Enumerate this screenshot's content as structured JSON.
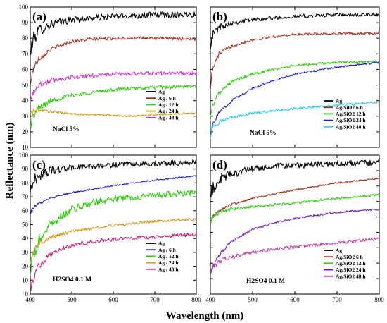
{
  "figure": {
    "ylabel": "Reflectance (nm)",
    "xlabel": "Wavelength (nm)"
  },
  "chart_data": [
    {
      "type": "line",
      "panel_label": "(a)",
      "condition": "NaCl 5%",
      "xlim": [
        400,
        800
      ],
      "ylim": [
        10,
        100
      ],
      "xticks": [
        400,
        500,
        600,
        700,
        800
      ],
      "yticks": [
        10,
        20,
        30,
        40,
        50,
        60,
        70,
        80,
        90,
        100
      ],
      "legend_position": "bottom-right",
      "series": [
        {
          "name": "Ag",
          "color": "#000000",
          "noise": 2.0,
          "x": [
            400,
            405,
            420,
            450,
            500,
            550,
            600,
            700,
            800
          ],
          "y": [
            68,
            78,
            85,
            89,
            92,
            93,
            94,
            95,
            95.5
          ]
        },
        {
          "name": "Ag / 6 h",
          "color": "#a0301e",
          "noise": 1.0,
          "x": [
            400,
            405,
            420,
            450,
            500,
            550,
            600,
            700,
            800
          ],
          "y": [
            48,
            59,
            67,
            73,
            78,
            79.5,
            80,
            80,
            79.5
          ]
        },
        {
          "name": "Ag / 12 h",
          "color": "#33cc11",
          "noise": 1.2,
          "x": [
            400,
            405,
            420,
            450,
            500,
            600,
            700,
            800
          ],
          "y": [
            23,
            29,
            35,
            40,
            43.5,
            47,
            48.5,
            49
          ]
        },
        {
          "name": "Ag / 24 h",
          "color": "#d49a16",
          "noise": 0.6,
          "x": [
            400,
            410,
            420,
            450,
            500,
            600,
            650,
            700,
            800
          ],
          "y": [
            32,
            33.5,
            34,
            33,
            31.5,
            30.5,
            30,
            31,
            32
          ]
        },
        {
          "name": "Ag / 48 h",
          "color": "#d12fd6",
          "noise": 1.2,
          "x": [
            400,
            405,
            420,
            450,
            500,
            600,
            700,
            800
          ],
          "y": [
            38,
            45,
            50,
            53,
            55,
            57,
            57.5,
            57.5
          ]
        }
      ]
    },
    {
      "type": "line",
      "panel_label": "(b)",
      "condition": "NaCl  5%",
      "xlim": [
        400,
        800
      ],
      "ylim": [
        10,
        100
      ],
      "xticks": [
        400,
        500,
        600,
        700,
        800
      ],
      "yticks": [
        10,
        20,
        30,
        40,
        50,
        60,
        70,
        80,
        90,
        100
      ],
      "legend_position": "bottom-right",
      "series": [
        {
          "name": "Ag",
          "color": "#000000",
          "noise": 1.2,
          "x": [
            400,
            405,
            420,
            450,
            500,
            550,
            600,
            700,
            800
          ],
          "y": [
            76,
            82,
            87,
            90,
            92,
            93,
            94,
            95,
            95
          ]
        },
        {
          "name": "Ag/SiO2 6 h",
          "color": "#a0301e",
          "noise": 0.8,
          "x": [
            400,
            405,
            420,
            450,
            500,
            550,
            600,
            700,
            800
          ],
          "y": [
            48,
            60,
            70,
            75,
            79,
            81,
            82.5,
            83,
            83
          ]
        },
        {
          "name": "Ag/SiO2 12 h",
          "color": "#33cc11",
          "noise": 0.8,
          "x": [
            400,
            405,
            420,
            450,
            500,
            550,
            600,
            700,
            800
          ],
          "y": [
            29,
            37,
            45,
            52,
            57,
            60,
            62.5,
            64.5,
            65
          ]
        },
        {
          "name": "Ag/SiO2 24 h",
          "color": "#1f1fc4",
          "noise": 0.6,
          "x": [
            400,
            405,
            420,
            450,
            500,
            550,
            600,
            700,
            800
          ],
          "y": [
            17,
            24,
            32,
            40,
            48,
            53,
            57,
            61.5,
            64.5
          ]
        },
        {
          "name": "Ag/SiO2 48 h",
          "color": "#33ccee",
          "noise": 0.8,
          "x": [
            400,
            405,
            420,
            450,
            500,
            600,
            700,
            800
          ],
          "y": [
            17,
            24,
            26,
            29,
            32,
            35,
            37,
            39
          ]
        }
      ]
    },
    {
      "type": "line",
      "panel_label": "(c)",
      "condition": "H2SO4 0.1 M",
      "xlim": [
        400,
        800
      ],
      "ylim": [
        0,
        100
      ],
      "xticks": [
        400,
        500,
        600,
        700,
        800
      ],
      "yticks": [
        0,
        10,
        20,
        30,
        40,
        50,
        60,
        70,
        80,
        90,
        100
      ],
      "legend_position": "bottom-right",
      "series": [
        {
          "name": "Ag",
          "color": "#000000",
          "noise": 2.0,
          "x": [
            400,
            405,
            420,
            450,
            500,
            550,
            600,
            700,
            800
          ],
          "y": [
            74,
            80,
            85,
            89,
            91,
            92,
            93,
            94,
            95
          ]
        },
        {
          "name": "Ag / 6 h",
          "color": "#1f1fc4",
          "noise": 0.5,
          "x": [
            400,
            405,
            420,
            450,
            500,
            600,
            700,
            800
          ],
          "y": [
            58,
            62,
            65,
            69,
            73,
            78,
            82,
            85
          ]
        },
        {
          "name": "Ag / 12 h",
          "color": "#33cc11",
          "noise": 2.4,
          "x": [
            400,
            405,
            420,
            450,
            500,
            550,
            600,
            700,
            800
          ],
          "y": [
            14,
            24,
            38,
            51,
            61,
            66,
            68.5,
            71,
            73
          ]
        },
        {
          "name": "Ag / 24 h",
          "color": "#d49a16",
          "noise": 1.0,
          "x": [
            400,
            405,
            420,
            450,
            500,
            600,
            700,
            800
          ],
          "y": [
            22,
            30,
            36,
            41,
            45,
            49.5,
            52.5,
            54
          ]
        },
        {
          "name": "Ag / 48 h",
          "color": "#c8287a",
          "noise": 1.4,
          "x": [
            400,
            405,
            420,
            450,
            500,
            550,
            600,
            700,
            800
          ],
          "y": [
            2,
            10,
            20,
            29,
            35,
            38,
            39.5,
            41,
            43
          ]
        }
      ]
    },
    {
      "type": "line",
      "panel_label": "(d)",
      "condition": "H2SO4 0.1 M",
      "xlim": [
        400,
        800
      ],
      "ylim": [
        10,
        100
      ],
      "xticks": [
        400,
        500,
        600,
        700,
        800
      ],
      "yticks": [
        10,
        20,
        30,
        40,
        50,
        60,
        70,
        80,
        90,
        100
      ],
      "legend_position": "bottom-right",
      "series": [
        {
          "name": "Ag",
          "color": "#000000",
          "noise": 2.0,
          "x": [
            400,
            405,
            420,
            450,
            500,
            550,
            600,
            700,
            800
          ],
          "y": [
            71,
            78,
            84,
            88,
            91,
            92.5,
            93.5,
            94.5,
            95
          ]
        },
        {
          "name": "Ag/SiO2 6 h",
          "color": "#a0301e",
          "noise": 0.5,
          "x": [
            400,
            405,
            420,
            450,
            500,
            600,
            700,
            800
          ],
          "y": [
            55,
            60,
            64,
            68,
            72,
            77.5,
            82,
            85
          ]
        },
        {
          "name": "Ag/SiO2 12 h",
          "color": "#33cc11",
          "noise": 0.8,
          "x": [
            400,
            405,
            420,
            450,
            500,
            600,
            700,
            800
          ],
          "y": [
            56,
            60,
            63,
            65,
            66.5,
            69,
            72,
            74.5
          ]
        },
        {
          "name": "Ag/SiO2 24 h",
          "color": "#6a1fc4",
          "noise": 0.6,
          "x": [
            400,
            405,
            420,
            450,
            500,
            550,
            600,
            700,
            800
          ],
          "y": [
            22,
            27,
            35,
            44,
            52,
            56,
            59,
            63,
            65
          ]
        },
        {
          "name": "Ag/SiO2 48 h",
          "color": "#c040a8",
          "noise": 1.0,
          "x": [
            400,
            405,
            420,
            450,
            500,
            550,
            600,
            700,
            800
          ],
          "y": [
            22,
            27,
            31,
            34,
            37,
            39,
            40.5,
            43,
            46
          ]
        }
      ]
    }
  ]
}
